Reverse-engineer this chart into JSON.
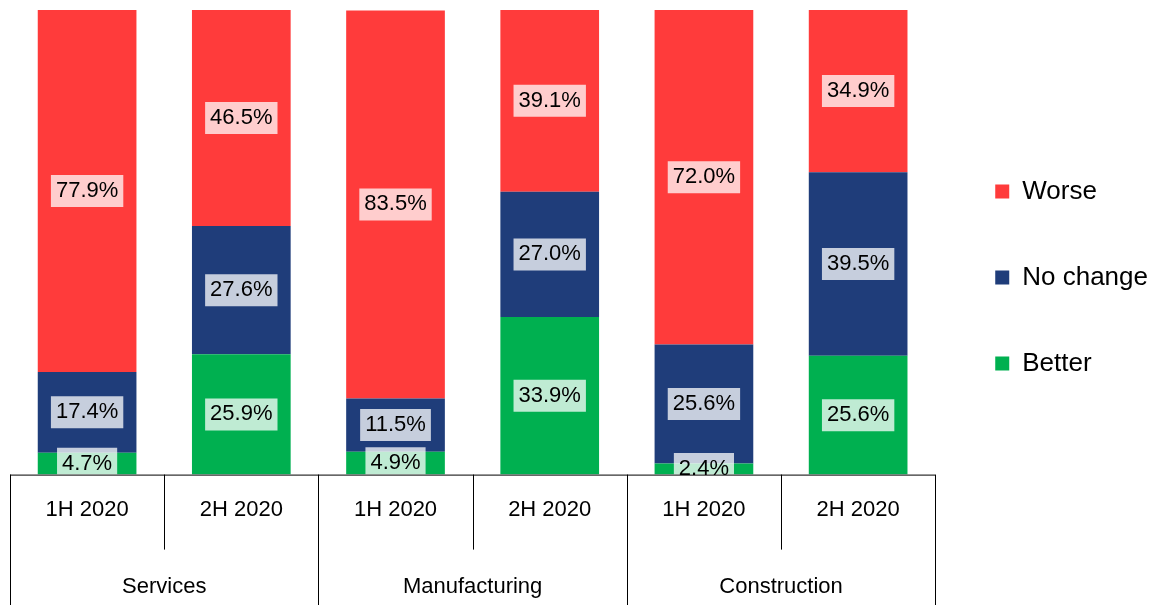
{
  "chart_data": {
    "type": "bar",
    "stacked": true,
    "legend": "right",
    "categories": [
      "1H 2020",
      "2H 2020",
      "1H 2020",
      "2H 2020",
      "1H 2020",
      "2H 2020"
    ],
    "annotations": [
      "Services",
      "Manufacturing",
      "Construction"
    ],
    "series": [
      {
        "name": "Better",
        "color": "#00b050",
        "values": [
          4.7,
          25.9,
          4.9,
          33.9,
          2.4,
          25.6
        ],
        "value_labels": [
          "4.7%",
          "25.9%",
          "4.9%",
          "33.9%",
          "2.4%",
          "25.6%"
        ]
      },
      {
        "name": "No change",
        "color": "#1f3d7a",
        "values": [
          17.4,
          27.6,
          11.5,
          27.0,
          25.6,
          39.5
        ],
        "value_labels": [
          "17.4%",
          "27.6%",
          "11.5%",
          "27.0%",
          "25.6%",
          "39.5%"
        ]
      },
      {
        "name": "Worse",
        "color": "#ff3b3b",
        "values": [
          77.9,
          46.5,
          83.5,
          39.1,
          72.0,
          34.9
        ],
        "value_labels": [
          "77.9%",
          "46.5%",
          "83.5%",
          "39.1%",
          "72.0%",
          "34.9%"
        ]
      }
    ]
  }
}
